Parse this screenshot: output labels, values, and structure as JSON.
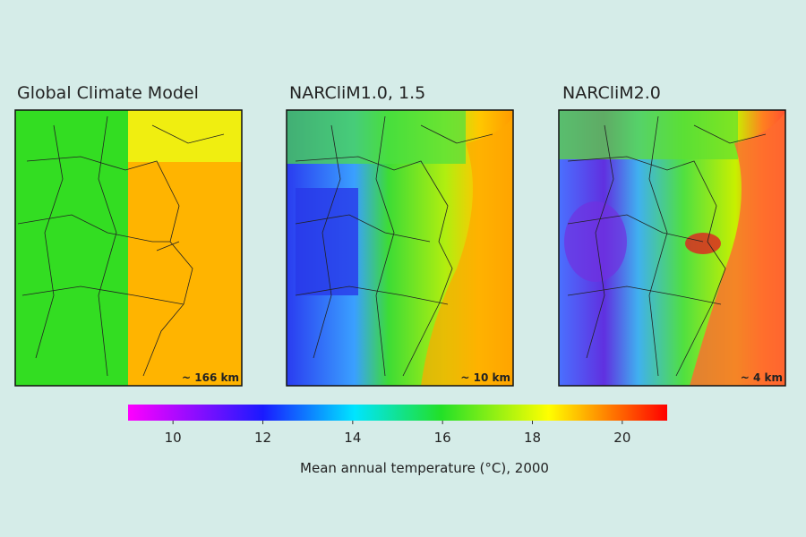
{
  "panels": [
    {
      "title": "Global Climate Model",
      "resolution": "~ 166 km"
    },
    {
      "title": "NARCliM1.0, 1.5",
      "resolution": "~ 10 km"
    },
    {
      "title": "NARCliM2.0",
      "resolution": "~ 4 km"
    }
  ],
  "colorbar": {
    "lim": [
      9,
      21
    ],
    "ticks": [
      10,
      12,
      14,
      16,
      18,
      20
    ],
    "label": "Mean annual temperature (°C), 2000"
  }
}
